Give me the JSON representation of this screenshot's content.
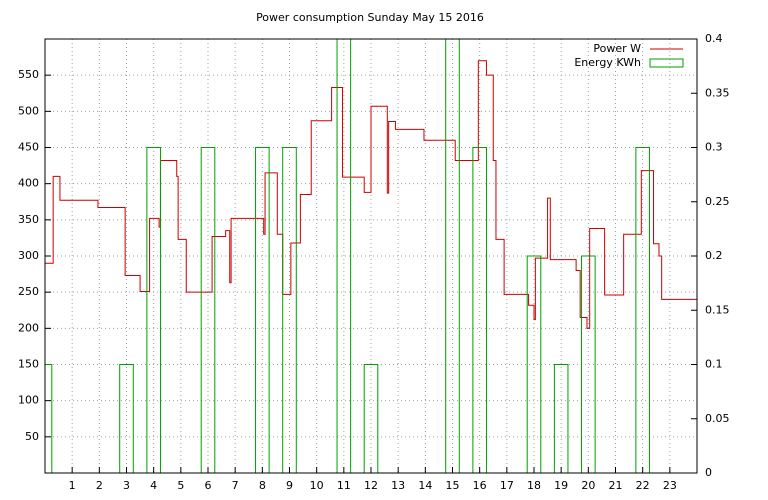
{
  "chart_data": {
    "type": "line",
    "title": "Power consumption Sunday May 15 2016",
    "xlim": [
      0,
      24
    ],
    "xticks": [
      1,
      2,
      3,
      4,
      5,
      6,
      7,
      8,
      9,
      10,
      11,
      12,
      13,
      14,
      15,
      16,
      17,
      18,
      19,
      20,
      21,
      22,
      23
    ],
    "ylim": [
      0,
      600
    ],
    "yticks": [
      50,
      100,
      150,
      200,
      250,
      300,
      350,
      400,
      450,
      500,
      550
    ],
    "y2lim": [
      0,
      0.4
    ],
    "y2ticks": [
      0,
      0.05,
      0.1,
      0.15,
      0.2,
      0.25,
      0.3,
      0.35,
      0.4
    ],
    "grid": true,
    "legend": "top-right",
    "series": [
      {
        "name": "Power W",
        "color": "#cc0000",
        "type": "line",
        "x": [
          0,
          0.3,
          0.3,
          0.55,
          0.55,
          1.95,
          1.95,
          2.95,
          2.95,
          3.5,
          3.5,
          3.85,
          3.85,
          4.2,
          4.2,
          4.25,
          4.25,
          4.85,
          4.85,
          4.9,
          4.9,
          5.2,
          5.2,
          6.15,
          6.15,
          6.65,
          6.65,
          6.8,
          6.8,
          6.85,
          6.85,
          8.05,
          8.05,
          8.1,
          8.1,
          8.55,
          8.55,
          8.75,
          8.75,
          9.05,
          9.05,
          9.4,
          9.4,
          9.8,
          9.8,
          10.55,
          10.55,
          10.95,
          10.95,
          11.75,
          11.75,
          12.0,
          12.0,
          12.6,
          12.6,
          12.65,
          12.65,
          12.9,
          12.9,
          13.95,
          13.95,
          15.1,
          15.1,
          15.95,
          15.95,
          16.25,
          16.25,
          16.5,
          16.5,
          16.6,
          16.6,
          16.9,
          16.9,
          17.8,
          17.8,
          18.0,
          18.0,
          18.05,
          18.05,
          18.5,
          18.5,
          18.6,
          18.6,
          19.55,
          19.55,
          19.7,
          19.7,
          19.95,
          19.95,
          20.05,
          20.05,
          20.6,
          20.6,
          21.3,
          21.3,
          21.95,
          21.95,
          22.4,
          22.4,
          22.6,
          22.6,
          22.7,
          22.7,
          24
        ],
        "values": [
          290,
          290,
          410,
          410,
          377,
          377,
          367,
          367,
          273,
          273,
          251,
          251,
          352,
          352,
          340,
          340,
          432,
          432,
          410,
          410,
          323,
          323,
          250,
          250,
          327,
          327,
          335,
          335,
          263,
          263,
          352,
          352,
          330,
          330,
          415,
          415,
          330,
          330,
          247,
          247,
          318,
          318,
          385,
          385,
          487,
          487,
          533,
          533,
          409,
          409,
          388,
          388,
          507,
          507,
          387,
          387,
          486,
          486,
          475,
          475,
          460,
          460,
          432,
          432,
          570,
          570,
          550,
          550,
          432,
          432,
          323,
          323,
          247,
          247,
          232,
          232,
          212,
          212,
          297,
          297,
          380,
          380,
          295,
          295,
          280,
          280,
          215,
          215,
          200,
          200,
          338,
          338,
          246,
          246,
          330,
          330,
          418,
          418,
          317,
          317,
          300,
          300,
          240,
          240
        ]
      },
      {
        "name": "Energy KWh",
        "color": "#00a000",
        "type": "bar",
        "axis": "y2",
        "x": [
          0,
          1,
          2,
          3,
          4,
          5,
          6,
          7,
          8,
          9,
          10,
          11,
          12,
          13,
          14,
          15,
          16,
          17,
          18,
          19,
          20,
          21,
          22,
          23
        ],
        "values": [
          0.1,
          0,
          0,
          0.1,
          0.3,
          0,
          0.3,
          0,
          0.3,
          0.3,
          0,
          0.4,
          0.1,
          0,
          0,
          0.4,
          0.3,
          0,
          0.2,
          0.1,
          0.2,
          0,
          0.3,
          0
        ]
      }
    ]
  }
}
